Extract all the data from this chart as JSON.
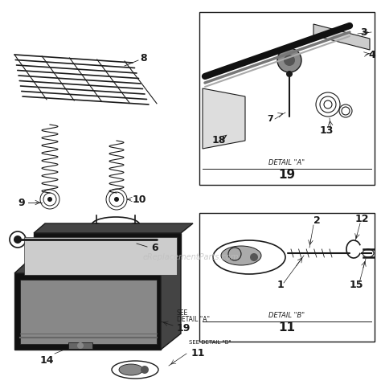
{
  "bg_color": "#ffffff",
  "fg_color": "#1a1a1a",
  "watermark": "eReplacementParts.com",
  "watermark_color": "#c0c0c0",
  "box_color": "#1a1a1a",
  "grate_color": "#2a2a2a",
  "grill_dark": "#111111",
  "grill_mid": "#444444",
  "grill_light": "#888888",
  "grill_inside": "#999999",
  "spring_color": "#2a2a2a",
  "detail_a_label": "DETAIL \"A\"",
  "detail_a_num": "19",
  "detail_b_label": "DETAIL \"B\"",
  "detail_b_num": "11"
}
